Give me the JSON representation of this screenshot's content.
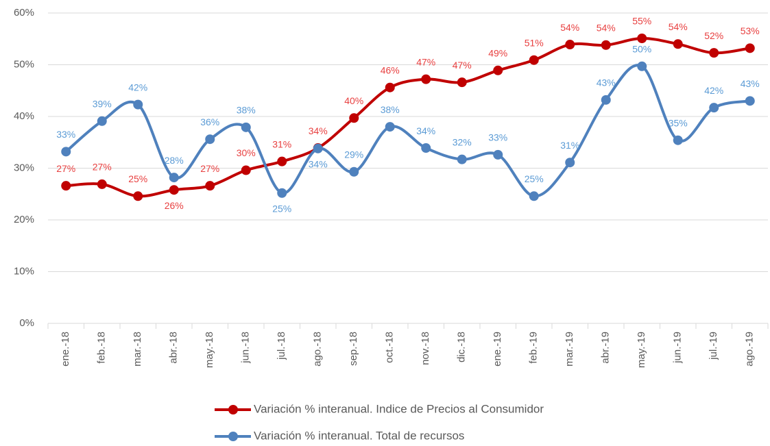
{
  "chart_data": {
    "type": "line",
    "categories": [
      "ene.-18",
      "feb.-18",
      "mar.-18",
      "abr.-18",
      "may.-18",
      "jun.-18",
      "jul.-18",
      "ago.-18",
      "sep.-18",
      "oct.-18",
      "nov.-18",
      "dic.-18",
      "ene.-19",
      "feb.-19",
      "mar.-19",
      "abr.-19",
      "may.-19",
      "jun.-19",
      "jul.-19",
      "ago.-19"
    ],
    "series": [
      {
        "name": "Variación % interanual. Indice de Precios al Consumidor",
        "color": "#c00000",
        "label_color": "#e84040",
        "values": [
          26.6,
          26.9,
          24.6,
          25.8,
          26.6,
          29.6,
          31.3,
          33.9,
          39.7,
          45.6,
          47.2,
          46.6,
          48.9,
          50.9,
          53.9,
          53.8,
          55.1,
          54.0,
          52.3,
          53.2
        ],
        "value_labels": [
          "27%",
          "27%",
          "25%",
          "26%",
          "27%",
          "30%",
          "31%",
          "34%",
          "40%",
          "46%",
          "47%",
          "47%",
          "49%",
          "51%",
          "54%",
          "54%",
          "55%",
          "54%",
          "52%",
          "53%"
        ]
      },
      {
        "name": "Variación % interanual. Total de recursos",
        "color": "#4f81bd",
        "label_color": "#5b9bd5",
        "values": [
          33.2,
          39.1,
          42.3,
          28.2,
          35.6,
          37.9,
          25.2,
          33.8,
          29.3,
          38.0,
          33.9,
          31.7,
          32.6,
          24.6,
          31.1,
          43.2,
          49.7,
          35.4,
          41.7,
          43.0
        ],
        "value_labels": [
          "33%",
          "39%",
          "42%",
          "28%",
          "36%",
          "38%",
          "25%",
          "34%",
          "29%",
          "38%",
          "34%",
          "32%",
          "33%",
          "25%",
          "31%",
          "43%",
          "50%",
          "35%",
          "42%",
          "43%"
        ]
      }
    ],
    "ylim": [
      0,
      60
    ],
    "yticks": [
      {
        "value": 0,
        "label": "0%"
      },
      {
        "value": 10,
        "label": "10%"
      },
      {
        "value": 20,
        "label": "20%"
      },
      {
        "value": 30,
        "label": "30%"
      },
      {
        "value": 40,
        "label": "40%"
      },
      {
        "value": 50,
        "label": "50%"
      },
      {
        "value": 60,
        "label": "60%"
      }
    ],
    "grid": true,
    "smooth": true,
    "legend": "bottom"
  }
}
